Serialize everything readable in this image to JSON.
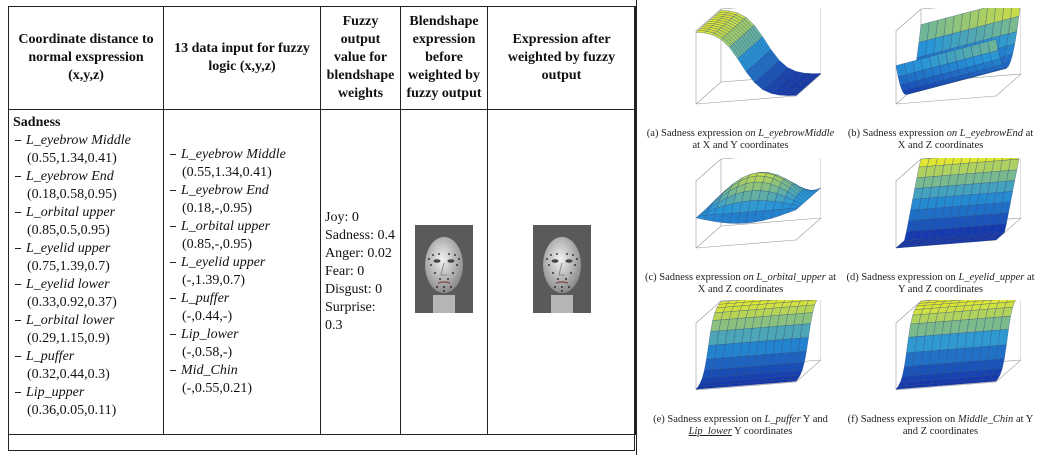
{
  "table": {
    "headers": [
      "Coordinate distance to normal exspression (x,y,z)",
      "13 data  input for fuzzy logic (x,y,z)",
      "Fuzzy output value for blendshape weights",
      "Blendshape expression before weighted by fuzzy output",
      "Expression after weighted by fuzzy output"
    ],
    "emotion": "Sadness",
    "distances": [
      {
        "name": "L_eyebrow Middle",
        "coords": "(0.55,1.34,0.41)"
      },
      {
        "name": "L_eyebrow End",
        "coords": "(0.18,0.58,0.95)"
      },
      {
        "name": "L_orbital upper",
        "coords": "(0.85,0.5,0.95)"
      },
      {
        "name": "L_eyelid upper",
        "coords": "(0.75,1.39,0.7)"
      },
      {
        "name": "L_eyelid lower",
        "coords": "(0.33,0.92,0.37)"
      },
      {
        "name": "L_orbital lower",
        "coords": "(0.29,1.15,0.9)"
      },
      {
        "name": "L_puffer",
        "coords": "(0.32,0.44,0.3)"
      },
      {
        "name": "Lip_upper",
        "coords": "(0.36,0.05,0.11)"
      }
    ],
    "inputs": [
      {
        "name": "L_eyebrow Middle",
        "coords": "(0.55,1.34,0.41)"
      },
      {
        "name": "L_eyebrow End",
        "coords": "(0.18,-,0.95)"
      },
      {
        "name": "L_orbital upper",
        "coords": "(0.85,-,0.95)"
      },
      {
        "name": "L_eyelid upper",
        "coords": "(-,1.39,0.7)"
      },
      {
        "name": "L_puffer",
        "coords": "(-,0.44,-)"
      },
      {
        "name": "Lip_lower",
        "coords": "(-,0.58,-)"
      },
      {
        "name": "Mid_Chin",
        "coords": "(-,0.55,0.21)"
      }
    ],
    "fuzzy_outputs": [
      "Joy: 0",
      "Sadness: 0.4",
      "Anger: 0.02",
      "Fear: 0",
      "Disgust: 0",
      "Surprise: 0.3"
    ]
  },
  "figures": [
    {
      "parts": [
        {
          "text": "(a) Sadness expression "
        },
        {
          "text": "on L_eyebrowMiddle",
          "italic": true
        },
        {
          "text": " at X and Y coordinates"
        }
      ]
    },
    {
      "parts": [
        {
          "text": "(b) Sadness expression "
        },
        {
          "text": "on L_eyebrowEnd",
          "italic": true
        },
        {
          "text": " at X and Z coordinates"
        }
      ]
    },
    {
      "parts": [
        {
          "text": "(c) Sadness expression "
        },
        {
          "text": "on L_orbital_upper",
          "italic": true
        },
        {
          "text": " at X and Z coordinates"
        }
      ]
    },
    {
      "parts": [
        {
          "text": "(d) Sadness expression on "
        },
        {
          "text": "L_eyelid_upper",
          "italic": true
        },
        {
          "text": " at Y and Z coordinates"
        }
      ]
    },
    {
      "parts": [
        {
          "text": "(e) Sadness expression on "
        },
        {
          "text": "L_puffer",
          "italic": true
        },
        {
          "text": " Y and "
        },
        {
          "text": "Lip_lower",
          "italic": true,
          "underline": true
        },
        {
          "text": " Y coordinates"
        }
      ]
    },
    {
      "parts": [
        {
          "text": "(f) Sadness expression on "
        },
        {
          "text": "Middle_Chin",
          "italic": true
        },
        {
          "text": " at Y and Z coordinates"
        }
      ]
    }
  ]
}
